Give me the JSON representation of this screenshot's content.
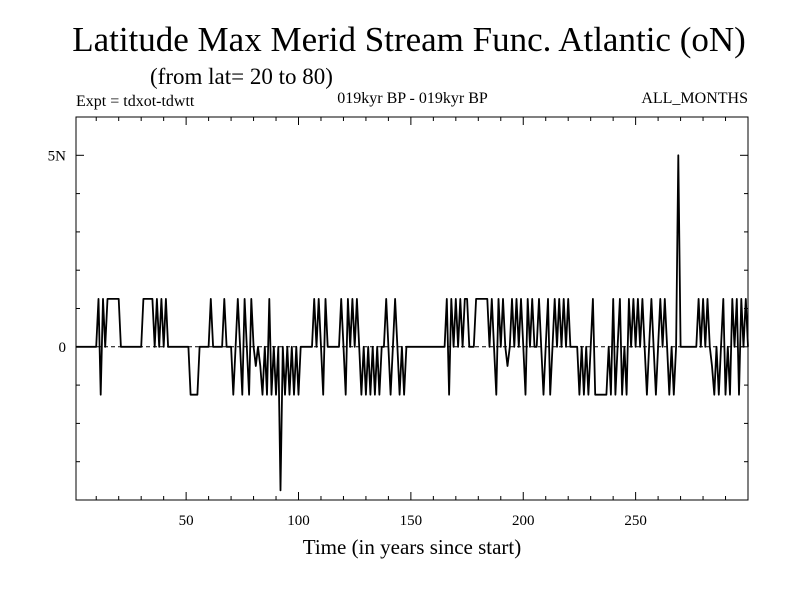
{
  "chart_data": {
    "type": "line",
    "title": "Latitude Max Merid Stream Func. Atlantic (oN)",
    "subtitle": "(from lat= 20 to 80)",
    "expt_label": "Expt = tdxot-tdwtt",
    "period_label": "019kyr BP - 019kyr BP",
    "months_label": "ALL_MONTHS",
    "xlabel": "Time (in years since start)",
    "ylabel": "",
    "xlim": [
      1,
      300
    ],
    "ylim": [
      -4,
      6
    ],
    "x_ticks": [
      50,
      100,
      150,
      200,
      250
    ],
    "y_ticks": [
      {
        "value": 0,
        "label": "0"
      },
      {
        "value": 5,
        "label": "5N"
      }
    ],
    "series": [
      {
        "name": "Latitude Max Merid Stream Func. Atlantic",
        "color": "#000000",
        "segments": [
          [
            1,
            0
          ],
          [
            10,
            0
          ],
          [
            11,
            1.25
          ],
          [
            12,
            -1.25
          ],
          [
            13,
            1.25
          ],
          [
            14,
            0
          ],
          [
            15,
            1.25
          ],
          [
            20,
            1.25
          ],
          [
            21,
            0
          ],
          [
            30,
            0
          ],
          [
            31,
            1.25
          ],
          [
            35,
            1.25
          ],
          [
            36,
            0
          ],
          [
            37,
            1.25
          ],
          [
            38,
            0
          ],
          [
            39,
            1.25
          ],
          [
            40,
            0
          ],
          [
            41,
            1.25
          ],
          [
            42,
            0
          ],
          [
            51,
            0
          ],
          [
            52,
            -1.25
          ],
          [
            55,
            -1.25
          ],
          [
            56,
            0
          ],
          [
            60,
            0
          ],
          [
            61,
            1.25
          ],
          [
            62,
            0
          ],
          [
            66,
            0
          ],
          [
            67,
            1.25
          ],
          [
            68,
            0
          ],
          [
            70,
            0
          ],
          [
            71,
            -1.25
          ],
          [
            72,
            0
          ],
          [
            73,
            1.25
          ],
          [
            74,
            0
          ],
          [
            75,
            -1.25
          ],
          [
            76,
            1.25
          ],
          [
            77,
            0
          ],
          [
            78,
            -1.25
          ],
          [
            79,
            1.25
          ],
          [
            80,
            0
          ],
          [
            81,
            -0.5
          ],
          [
            82,
            0
          ],
          [
            83,
            -0.5
          ],
          [
            84,
            -1.25
          ],
          [
            85,
            0
          ],
          [
            86,
            -1.25
          ],
          [
            87,
            1.25
          ],
          [
            88,
            -1.25
          ],
          [
            89,
            0
          ],
          [
            90,
            -1.25
          ],
          [
            91,
            0
          ],
          [
            92,
            -3.75
          ],
          [
            93,
            0
          ],
          [
            94,
            -1.25
          ],
          [
            95,
            0
          ],
          [
            96,
            -1.25
          ],
          [
            97,
            0
          ],
          [
            98,
            -1.25
          ],
          [
            99,
            0
          ],
          [
            100,
            -1.25
          ],
          [
            101,
            0
          ],
          [
            106,
            0
          ],
          [
            107,
            1.25
          ],
          [
            108,
            0
          ],
          [
            109,
            1.25
          ],
          [
            110,
            0
          ],
          [
            111,
            -1.25
          ],
          [
            112,
            1.25
          ],
          [
            113,
            0
          ],
          [
            118,
            0
          ],
          [
            119,
            1.25
          ],
          [
            120,
            0
          ],
          [
            121,
            -1.25
          ],
          [
            122,
            1.25
          ],
          [
            123,
            0
          ],
          [
            124,
            1.25
          ],
          [
            125,
            0
          ],
          [
            126,
            1.25
          ],
          [
            127,
            0
          ],
          [
            128,
            -1.25
          ],
          [
            129,
            0
          ],
          [
            130,
            -1.25
          ],
          [
            131,
            0
          ],
          [
            132,
            -1.25
          ],
          [
            133,
            0
          ],
          [
            134,
            -1.25
          ],
          [
            135,
            0
          ],
          [
            136,
            -1.25
          ],
          [
            137,
            0
          ],
          [
            138,
            0
          ],
          [
            139,
            1.25
          ],
          [
            140,
            0
          ],
          [
            141,
            -1.25
          ],
          [
            142,
            0
          ],
          [
            143,
            1.25
          ],
          [
            144,
            0
          ],
          [
            145,
            -1.25
          ],
          [
            146,
            0
          ],
          [
            147,
            -1.25
          ],
          [
            148,
            0
          ],
          [
            165,
            0
          ],
          [
            166,
            1.25
          ],
          [
            167,
            -1.25
          ],
          [
            168,
            1.25
          ],
          [
            169,
            0
          ],
          [
            170,
            1.25
          ],
          [
            171,
            0
          ],
          [
            172,
            1.25
          ],
          [
            173,
            0
          ],
          [
            174,
            1.25
          ],
          [
            175,
            1.25
          ],
          [
            176,
            0
          ],
          [
            178,
            0
          ],
          [
            179,
            1.25
          ],
          [
            184,
            1.25
          ],
          [
            185,
            0
          ],
          [
            186,
            1.25
          ],
          [
            187,
            0
          ],
          [
            188,
            -1.25
          ],
          [
            189,
            1.25
          ],
          [
            190,
            0
          ],
          [
            191,
            1.25
          ],
          [
            192,
            0
          ],
          [
            193,
            -0.5
          ],
          [
            194,
            0
          ],
          [
            195,
            1.25
          ],
          [
            196,
            0
          ],
          [
            197,
            1.25
          ],
          [
            198,
            0
          ],
          [
            199,
            1.25
          ],
          [
            200,
            0
          ],
          [
            201,
            -1.25
          ],
          [
            202,
            1.25
          ],
          [
            203,
            0
          ],
          [
            204,
            1.25
          ],
          [
            205,
            0
          ],
          [
            206,
            0
          ],
          [
            207,
            1.25
          ],
          [
            208,
            0
          ],
          [
            209,
            -1.25
          ],
          [
            210,
            0
          ],
          [
            211,
            1.25
          ],
          [
            212,
            -1.25
          ],
          [
            213,
            0
          ],
          [
            214,
            1.25
          ],
          [
            215,
            0
          ],
          [
            216,
            1.25
          ],
          [
            217,
            0
          ],
          [
            218,
            1.25
          ],
          [
            219,
            0
          ],
          [
            220,
            1.25
          ],
          [
            221,
            0
          ],
          [
            224,
            0
          ],
          [
            225,
            -1.25
          ],
          [
            226,
            0
          ],
          [
            227,
            -1.25
          ],
          [
            228,
            0
          ],
          [
            229,
            -1.25
          ],
          [
            230,
            0
          ],
          [
            231,
            1.25
          ],
          [
            232,
            -1.25
          ],
          [
            237,
            -1.25
          ],
          [
            238,
            0
          ],
          [
            239,
            -1.25
          ],
          [
            240,
            1.25
          ],
          [
            241,
            -1.25
          ],
          [
            242,
            0
          ],
          [
            243,
            1.25
          ],
          [
            244,
            -1.25
          ],
          [
            245,
            0
          ],
          [
            246,
            -1.25
          ],
          [
            247,
            1.25
          ],
          [
            248,
            0
          ],
          [
            249,
            1.25
          ],
          [
            250,
            0
          ],
          [
            251,
            1.25
          ],
          [
            252,
            0
          ],
          [
            253,
            1.25
          ],
          [
            254,
            0
          ],
          [
            255,
            -1.25
          ],
          [
            256,
            0
          ],
          [
            257,
            1.25
          ],
          [
            258,
            0
          ],
          [
            259,
            -1.25
          ],
          [
            260,
            0
          ],
          [
            261,
            1.25
          ],
          [
            262,
            0
          ],
          [
            263,
            1.25
          ],
          [
            264,
            0
          ],
          [
            265,
            -1.25
          ],
          [
            266,
            0
          ],
          [
            267,
            -1.25
          ],
          [
            268,
            0
          ],
          [
            269,
            5.0
          ],
          [
            270,
            0
          ],
          [
            277,
            0
          ],
          [
            278,
            1.25
          ],
          [
            279,
            0
          ],
          [
            280,
            1.25
          ],
          [
            281,
            0
          ],
          [
            282,
            1.25
          ],
          [
            283,
            0
          ],
          [
            284,
            -0.5
          ],
          [
            285,
            -1.25
          ],
          [
            286,
            0
          ],
          [
            287,
            -1.25
          ],
          [
            288,
            0
          ],
          [
            289,
            1.25
          ],
          [
            290,
            -1.25
          ],
          [
            291,
            0
          ],
          [
            292,
            -1.25
          ],
          [
            293,
            1.25
          ],
          [
            294,
            0
          ],
          [
            295,
            1.25
          ],
          [
            296,
            -1.25
          ],
          [
            297,
            1.25
          ],
          [
            298,
            0
          ],
          [
            299,
            1.25
          ],
          [
            300,
            0
          ]
        ]
      }
    ]
  }
}
